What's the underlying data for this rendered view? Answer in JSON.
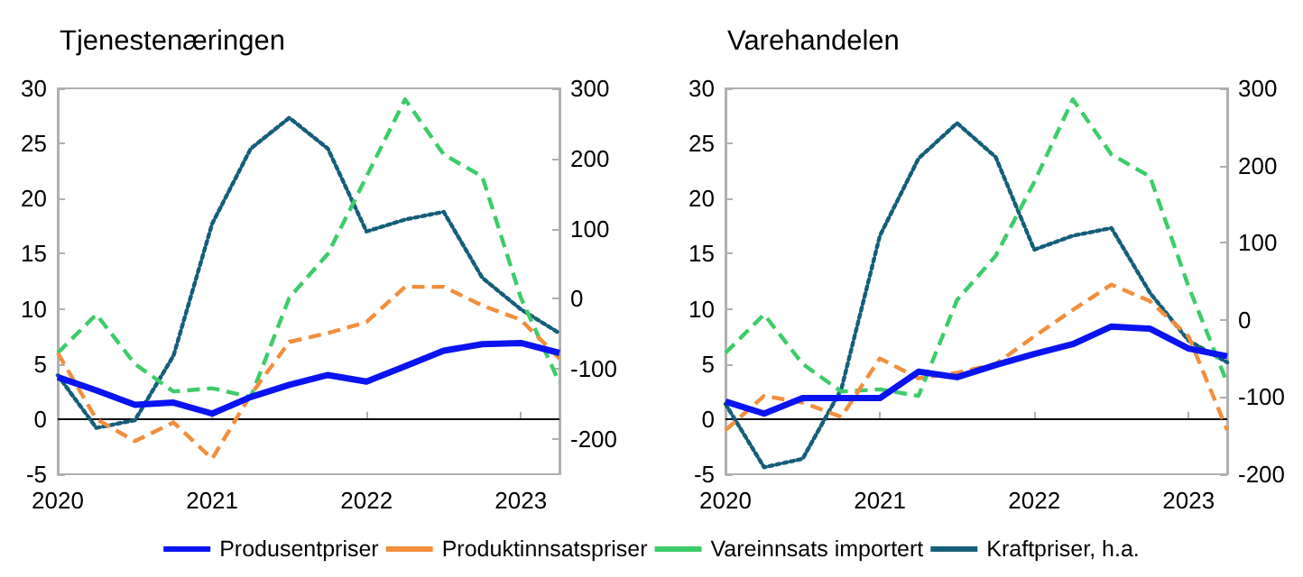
{
  "chart_data": [
    {
      "type": "line",
      "title": "Tjenestenæringen",
      "x": [
        2020,
        2020.25,
        2020.5,
        2020.75,
        2021,
        2021.25,
        2021.5,
        2021.75,
        2022,
        2022.25,
        2022.5,
        2022.75,
        2023,
        2023.25
      ],
      "xlim": [
        2020,
        2023.25
      ],
      "xticks": [
        2020,
        2021,
        2022,
        2023
      ],
      "ylim": [
        -5,
        30
      ],
      "yticks": [
        -5,
        0,
        5,
        10,
        15,
        20,
        25,
        30
      ],
      "y2lim": [
        -250,
        300
      ],
      "y2ticks": [
        -200,
        -100,
        0,
        100,
        200,
        300
      ],
      "grid": false,
      "legend": "bottom",
      "marker": "none",
      "ref_lines": [
        {
          "axis": "y",
          "value": 0,
          "color": "#000000"
        }
      ],
      "series": [
        {
          "name": "Produsentpriser",
          "color": "#0a14f0",
          "line_style": "solid",
          "values": [
            3.8,
            2.6,
            1.3,
            1.5,
            0.5,
            2.0,
            3.1,
            4.0,
            3.4,
            4.8,
            6.2,
            6.8,
            6.9,
            6.0
          ]
        },
        {
          "name": "Produktinnsatspriser",
          "color": "#f28e3c",
          "line_style": "dashed",
          "values": [
            6.0,
            0.0,
            -2.0,
            -0.3,
            -3.6,
            2.2,
            7.0,
            7.8,
            8.8,
            12.0,
            12.0,
            10.3,
            9.0,
            5.5
          ]
        },
        {
          "name": "Vareinnsats importert",
          "color": "#3dcc6a",
          "line_style": "dashed",
          "values": [
            6.0,
            9.5,
            5.0,
            2.5,
            2.8,
            2.0,
            11.0,
            15.0,
            22.0,
            29.0,
            24.0,
            22.0,
            11.0,
            3.3
          ]
        },
        {
          "name": "Kraftpriser, h.a.",
          "color": "#155e7a",
          "line_style": "dotted",
          "axis": "y2",
          "values": [
            -109,
            -184,
            -173,
            -81,
            107,
            214,
            258,
            214,
            96,
            113,
            124,
            30,
            -15,
            -49
          ]
        }
      ]
    },
    {
      "type": "line",
      "title": "Varehandelen",
      "x": [
        2020,
        2020.25,
        2020.5,
        2020.75,
        2021,
        2021.25,
        2021.5,
        2021.75,
        2022,
        2022.25,
        2022.5,
        2022.75,
        2023,
        2023.25
      ],
      "xlim": [
        2020,
        2023.25
      ],
      "xticks": [
        2020,
        2021,
        2022,
        2023
      ],
      "ylim": [
        -5,
        30
      ],
      "yticks": [
        -5,
        0,
        5,
        10,
        15,
        20,
        25,
        30
      ],
      "y2lim": [
        -200,
        300
      ],
      "y2ticks": [
        -200,
        -100,
        0,
        100,
        200,
        300
      ],
      "grid": false,
      "marker": "none",
      "ref_lines": [
        {
          "axis": "y",
          "value": 0,
          "color": "#000000"
        }
      ],
      "series": [
        {
          "color": "#0a14f0",
          "line_style": "solid",
          "values": [
            1.6,
            0.5,
            1.9,
            1.9,
            1.9,
            4.3,
            3.8,
            4.9,
            5.9,
            6.8,
            8.4,
            8.2,
            6.4,
            5.7
          ]
        },
        {
          "color": "#f28e3c",
          "line_style": "dashed",
          "values": [
            -1.0,
            2.1,
            1.5,
            0.2,
            5.5,
            3.7,
            4.2,
            5.0,
            7.5,
            9.9,
            12.2,
            10.7,
            7.5,
            -1.0
          ]
        },
        {
          "color": "#3dcc6a",
          "line_style": "dashed",
          "values": [
            6.0,
            9.5,
            5.0,
            2.5,
            2.7,
            2.1,
            10.8,
            14.8,
            21.5,
            29.0,
            24.0,
            22.0,
            12.0,
            3.3
          ]
        },
        {
          "color": "#155e7a",
          "line_style": "dotted",
          "axis": "y2",
          "values": [
            -109,
            -191,
            -180,
            -90,
            109,
            209,
            255,
            211,
            91,
            109,
            119,
            35,
            -27,
            -55
          ]
        }
      ]
    }
  ]
}
